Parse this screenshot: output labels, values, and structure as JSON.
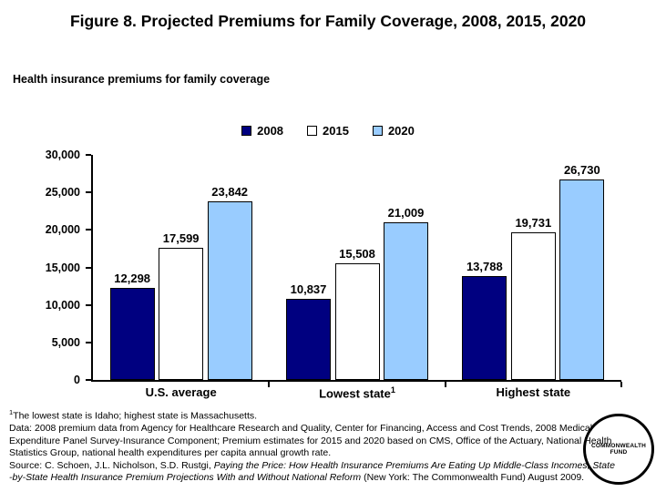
{
  "chart_data": {
    "type": "bar",
    "title": "Figure 8. Projected Premiums for Family Coverage, 2008, 2015, 2020",
    "subtitle": "Health insurance premiums for family coverage",
    "categories": [
      "U.S. average",
      "Lowest state",
      "Highest state"
    ],
    "category_superscripts": [
      "",
      "1",
      ""
    ],
    "series": [
      {
        "name": "2008",
        "color": "#000080",
        "values": [
          12298,
          10837,
          13788
        ]
      },
      {
        "name": "2015",
        "color": "#FFFFFF",
        "values": [
          17599,
          15508,
          19731
        ]
      },
      {
        "name": "2020",
        "color": "#99CCFF",
        "values": [
          23842,
          21009,
          26730
        ]
      }
    ],
    "xlabel": "",
    "ylabel": "",
    "ylim": [
      0,
      30000
    ],
    "ytick_step": 5000,
    "ytick_labels": [
      "0",
      "5,000",
      "10,000",
      "15,000",
      "20,000",
      "25,000",
      "30,000"
    ],
    "legend_position": "top-center",
    "grid": false,
    "bar_outline_color": "#000000",
    "value_label_format": "thousands-comma"
  },
  "footnotes": {
    "lines": [
      {
        "segments": [
          {
            "text": "1",
            "sup": true
          },
          {
            "text": "The lowest state is Idaho; highest state is Massachusetts."
          }
        ]
      },
      {
        "segments": [
          {
            "text": "Data: 2008 premium data from Agency for Healthcare Research and Quality, Center for Financing, Access and Cost Trends, 2008 Medical"
          }
        ]
      },
      {
        "segments": [
          {
            "text": "Expenditure Panel Survey-Insurance Component; Premium estimates for 2015 and 2020 based on CMS, Office of the Actuary, National Health"
          }
        ]
      },
      {
        "segments": [
          {
            "text": "Statistics Group, national health expenditures per capita annual growth rate."
          }
        ]
      },
      {
        "segments": [
          {
            "text": "Source: C. Schoen, J.L. Nicholson, S.D. Rustgi, "
          },
          {
            "text": "Paying the Price: How Health Insurance Premiums Are Eating Up Middle-Class Incomes, State",
            "italic": true
          }
        ]
      },
      {
        "segments": [
          {
            "text": "-by-State Health Insurance Premium Projections With and Without National Reform",
            "italic": true
          },
          {
            "text": " (New York: The Commonwealth Fund) August 2009."
          }
        ]
      }
    ]
  },
  "logo": {
    "lines": [
      "COMMONWEALTH",
      "FUND"
    ]
  }
}
